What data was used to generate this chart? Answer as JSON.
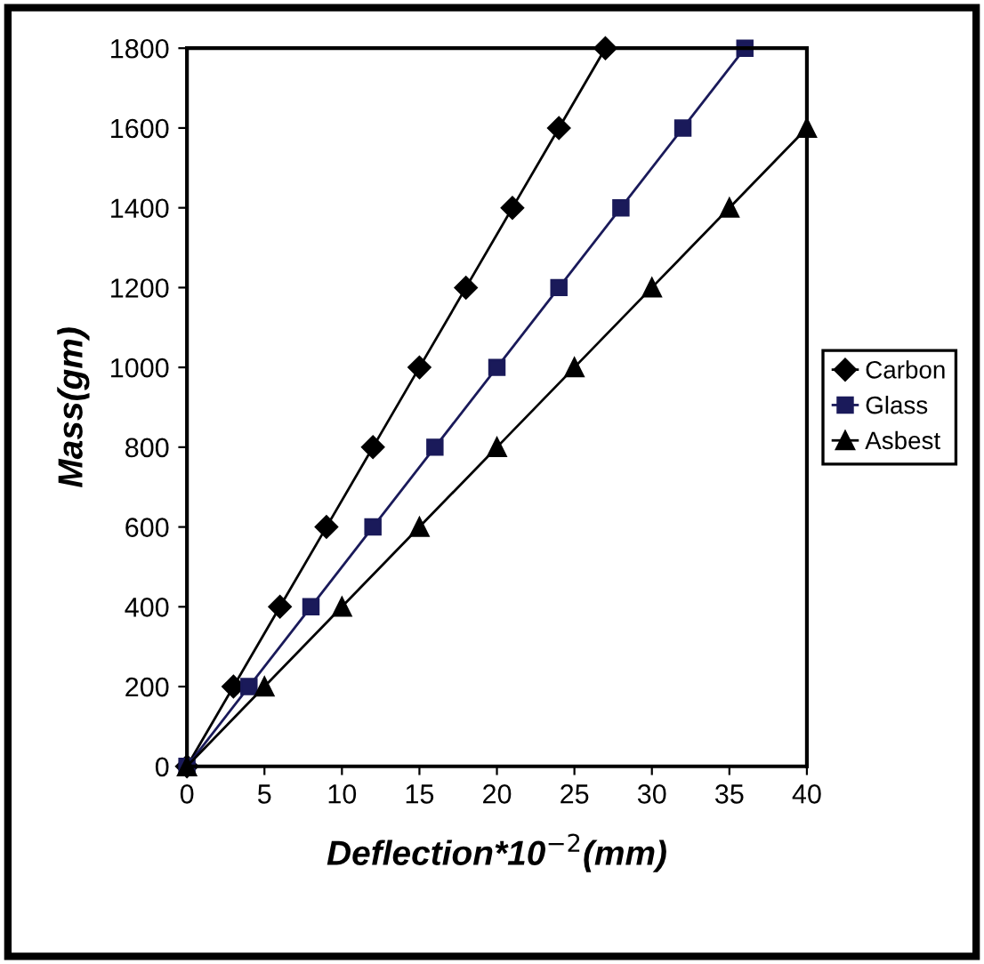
{
  "chart_data": {
    "type": "line",
    "xlabel": "Deflection*10$^{−2}$(mm)",
    "ylabel": "Mass(gm)",
    "xlim": [
      0,
      40
    ],
    "xticks": [
      0,
      5,
      10,
      15,
      20,
      25,
      30,
      35,
      40
    ],
    "ylim": [
      0,
      1800
    ],
    "yticks": [
      0,
      200,
      400,
      600,
      800,
      1000,
      1200,
      1400,
      1600,
      1800
    ],
    "grid": false,
    "legend": "right",
    "line_style": "solid",
    "series": [
      {
        "name": "Carbon",
        "color": "#000000",
        "marker": "diamond",
        "x": [
          0,
          3,
          6,
          9,
          12,
          15,
          18,
          21,
          24,
          27
        ],
        "values": [
          0,
          200,
          400,
          600,
          800,
          1000,
          1200,
          1400,
          1600,
          1800
        ]
      },
      {
        "name": "Glass",
        "color": "#1a1a5a",
        "marker": "square",
        "x": [
          0,
          4,
          8,
          12,
          16,
          20,
          24,
          28,
          32,
          36
        ],
        "values": [
          0,
          200,
          400,
          600,
          800,
          1000,
          1200,
          1400,
          1600,
          1800
        ]
      },
      {
        "name": "Asbest",
        "color": "#000000",
        "marker": "triangle",
        "x": [
          0,
          5,
          10,
          15,
          20,
          25,
          30,
          35,
          40
        ],
        "values": [
          0,
          200,
          400,
          600,
          800,
          1000,
          1200,
          1400,
          1600
        ]
      }
    ]
  }
}
